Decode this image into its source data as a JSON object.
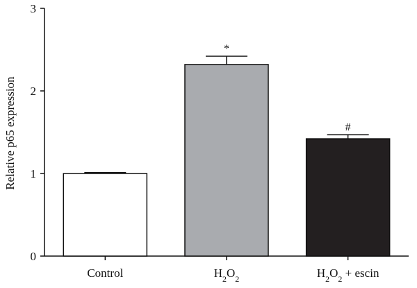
{
  "chart_data": {
    "type": "bar",
    "title": "",
    "xlabel": "",
    "ylabel": "Relative p65 expression",
    "ylim": [
      0,
      3
    ],
    "yticks": [
      "0",
      "1",
      "2",
      "3"
    ],
    "categories": [
      {
        "parts": [
          {
            "text": "Control",
            "sub": false
          }
        ]
      },
      {
        "parts": [
          {
            "text": "H",
            "sub": false
          },
          {
            "text": "2",
            "sub": true
          },
          {
            "text": "O",
            "sub": false
          },
          {
            "text": "2",
            "sub": true
          }
        ]
      },
      {
        "parts": [
          {
            "text": "H",
            "sub": false
          },
          {
            "text": "2",
            "sub": true
          },
          {
            "text": "O",
            "sub": false
          },
          {
            "text": "2",
            "sub": true
          },
          {
            "text": " + escin",
            "sub": false
          }
        ]
      }
    ],
    "values": [
      1.0,
      2.32,
      1.42
    ],
    "errors": [
      0.01,
      0.1,
      0.05
    ],
    "significance": [
      "",
      "*",
      "#"
    ],
    "colors": [
      "#ffffff",
      "#a9abaf",
      "#231f20"
    ],
    "grid": false,
    "legend": "none"
  }
}
